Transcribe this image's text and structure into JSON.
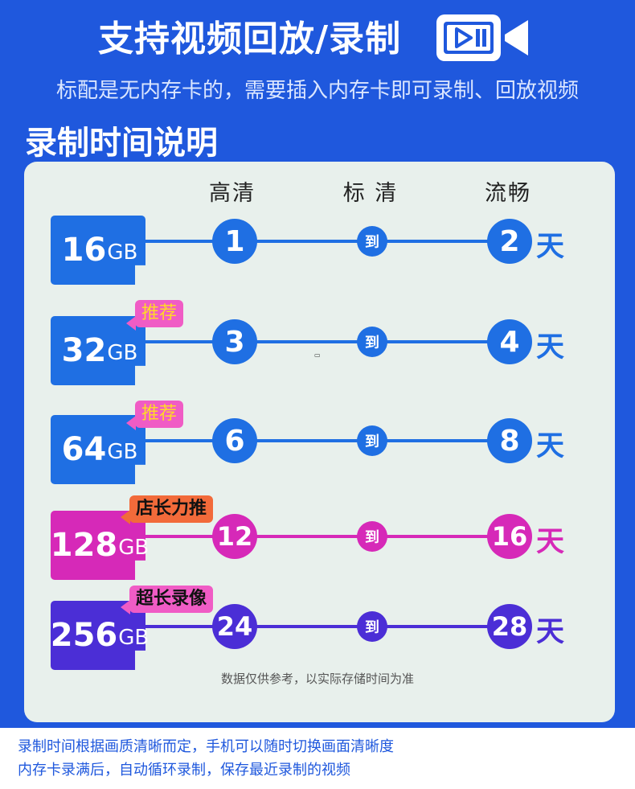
{
  "header": {
    "title": "支持视频回放/录制",
    "subtitle": "标配是无内存卡的，需要插入内存卡即可录制、回放视频",
    "section_title": "录制时间说明",
    "icon": "video-camera-play-icon"
  },
  "table": {
    "columns": [
      "高清",
      "标 清",
      "流畅"
    ],
    "connector": "到",
    "day_unit": "天",
    "rows": [
      {
        "size": "16",
        "unit": "GB",
        "from": "1",
        "to": "2",
        "tag": ""
      },
      {
        "size": "32",
        "unit": "GB",
        "from": "3",
        "to": "4",
        "tag": "推荐"
      },
      {
        "size": "64",
        "unit": "GB",
        "from": "6",
        "to": "8",
        "tag": "推荐"
      },
      {
        "size": "128",
        "unit": "GB",
        "from": "12",
        "to": "16",
        "tag": "店长力推"
      },
      {
        "size": "256",
        "unit": "GB",
        "from": "24",
        "to": "28",
        "tag": "超长录像"
      }
    ],
    "note": "数据仅供参考，以实际存储时间为准"
  },
  "footer": {
    "line1": "录制时间根据画质清晰而定，手机可以随时切换画面清晰度",
    "line2": "内存卡录满后，自动循环录制，保存最近录制的视频"
  },
  "colors": {
    "background": "#1f58dd",
    "panel": "#e8f0ec",
    "blue": "#1f6fe3",
    "magenta": "#d629b8",
    "purple": "#4b2ed6",
    "tag_pink": "#f05cc5",
    "tag_orange": "#f26a3a",
    "tag_text_yellow": "#ffd928"
  }
}
